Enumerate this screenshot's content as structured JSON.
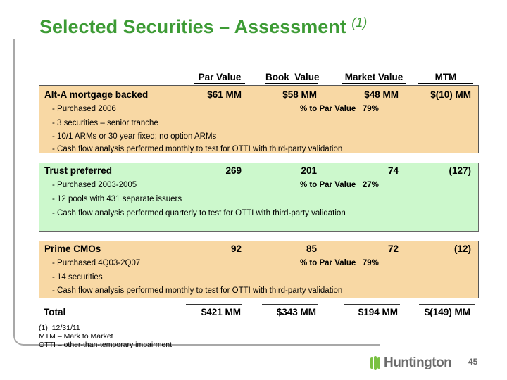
{
  "title": "Selected Securities – Assessment",
  "title_note": "(1)",
  "headers": [
    "Par Value",
    "Book  Value",
    "Market Value",
    "MTM"
  ],
  "sections": [
    {
      "label": "Alt-A mortgage backed",
      "values": [
        "$61 MM",
        "$58 MM",
        "$48 MM",
        "$(10) MM"
      ],
      "details": [
        "- Purchased 2006",
        "- 3 securities – senior tranche",
        "- 10/1 ARMs or 30 year fixed; no option ARMs",
        "- Cash flow analysis performed monthly to test for OTTI with third-party validation"
      ],
      "pct": "% to Par Value   79%"
    },
    {
      "label": "Trust preferred",
      "values": [
        "269",
        "201",
        "74",
        "(127)"
      ],
      "details": [
        "- Purchased 2003-2005",
        "- 12 pools with 431 separate issuers",
        "- Cash flow analysis performed quarterly to test for OTTI with third-party validation"
      ],
      "pct": "% to Par Value   27%"
    },
    {
      "label": "Prime CMOs",
      "values": [
        "92",
        "85",
        "72",
        "(12)"
      ],
      "details": [
        "- Purchased 4Q03-2Q07",
        "- 14 securities",
        "- Cash flow analysis performed monthly to test for OTTI with third-party validation"
      ],
      "pct": "% to Par Value   79%"
    }
  ],
  "total": {
    "label": "Total",
    "values": [
      "$421 MM",
      "$343 MM",
      "$194 MM",
      "$(149) MM"
    ]
  },
  "footnotes": [
    "(1)  12/31/11",
    "MTM – Mark to Market",
    "OTTI – other-than-temporary impairment"
  ],
  "logo": "Huntington",
  "page_number": "45",
  "colors": {
    "title": "#3d9b35",
    "orange_box": "#f8d8a4",
    "green_box": "#ccf8cc"
  }
}
